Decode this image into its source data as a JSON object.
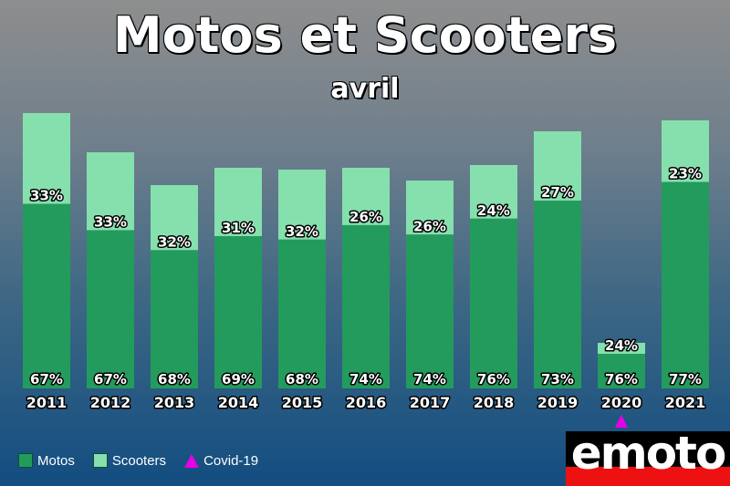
{
  "chart_data": {
    "type": "bar",
    "stacked": true,
    "title": "Motos et Scooters",
    "subtitle": "avril",
    "categories": [
      "2011",
      "2012",
      "2013",
      "2014",
      "2015",
      "2016",
      "2017",
      "2018",
      "2019",
      "2020",
      "2021"
    ],
    "series": [
      {
        "name": "Motos",
        "color": "#239b5c",
        "values": [
          67,
          67,
          68,
          69,
          68,
          74,
          74,
          76,
          73,
          76,
          77
        ],
        "labels": [
          "67%",
          "67%",
          "68%",
          "69%",
          "68%",
          "74%",
          "74%",
          "76%",
          "73%",
          "76%",
          "77%"
        ]
      },
      {
        "name": "Scooters",
        "color": "#85e0ad",
        "values": [
          33,
          33,
          32,
          31,
          32,
          26,
          26,
          24,
          27,
          24,
          23
        ],
        "labels": [
          "33%",
          "33%",
          "32%",
          "31%",
          "32%",
          "26%",
          "26%",
          "24%",
          "27%",
          "24%",
          "23%"
        ]
      }
    ],
    "totals_relative": [
      302,
      259,
      223,
      242,
      240,
      242,
      228,
      245,
      282,
      50,
      294
    ],
    "marker": {
      "category": "2020",
      "name": "Covid-19",
      "color": "#e800e8"
    },
    "ylim": [
      0,
      302
    ],
    "grid": false,
    "legend_position": "bottom-left"
  },
  "legend": {
    "motos": "Motos",
    "scooters": "Scooters",
    "covid": "Covid-19"
  },
  "logo": {
    "text": "emoto"
  }
}
